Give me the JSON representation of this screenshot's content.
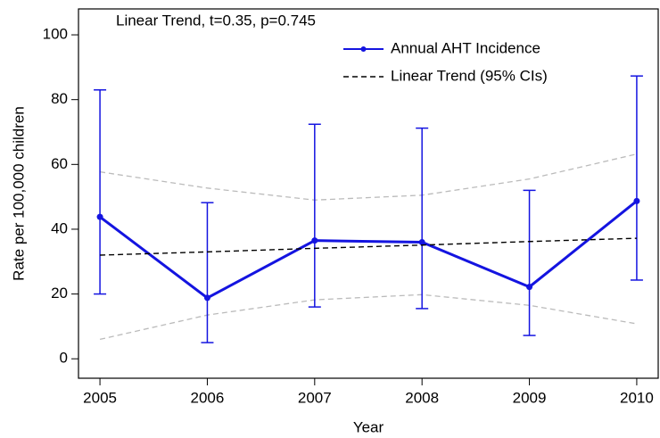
{
  "chart_data": {
    "type": "line",
    "annotation": "Linear Trend, t=0.35, p=0.745",
    "x_label": "Year",
    "y_label": "Rate per 100,000 children",
    "x": [
      2005,
      2006,
      2007,
      2008,
      2009,
      2010
    ],
    "series": [
      {
        "name": "Annual AHT Incidence",
        "color": "#1414e0",
        "style": "solid",
        "marker": true,
        "values": [
          43.8,
          18.8,
          36.5,
          36,
          22.2,
          48.7
        ],
        "lower": [
          20,
          5,
          16,
          15.5,
          7.2,
          24.3
        ],
        "upper": [
          83,
          48.2,
          72.4,
          71.2,
          52,
          87.3
        ]
      },
      {
        "name": "Linear Trend (95% CIs)",
        "color": "#000000",
        "style": "dashed",
        "marker": false,
        "values": [
          32,
          33,
          34.1,
          35.1,
          36.2,
          37.2
        ]
      }
    ],
    "ci_color": "#bbbbbb",
    "ci_lower": [
      6,
      13.5,
      18.2,
      19.8,
      16.5,
      10.8
    ],
    "ci_upper": [
      57.7,
      52.7,
      49,
      50.5,
      55.5,
      63.2
    ],
    "xlim": [
      2004.8,
      2010.2
    ],
    "ylim": [
      -6,
      108
    ],
    "xticks": [
      2005,
      2006,
      2007,
      2008,
      2009,
      2010
    ],
    "yticks": [
      0,
      20,
      40,
      60,
      80,
      100
    ],
    "legend": "top-right"
  }
}
